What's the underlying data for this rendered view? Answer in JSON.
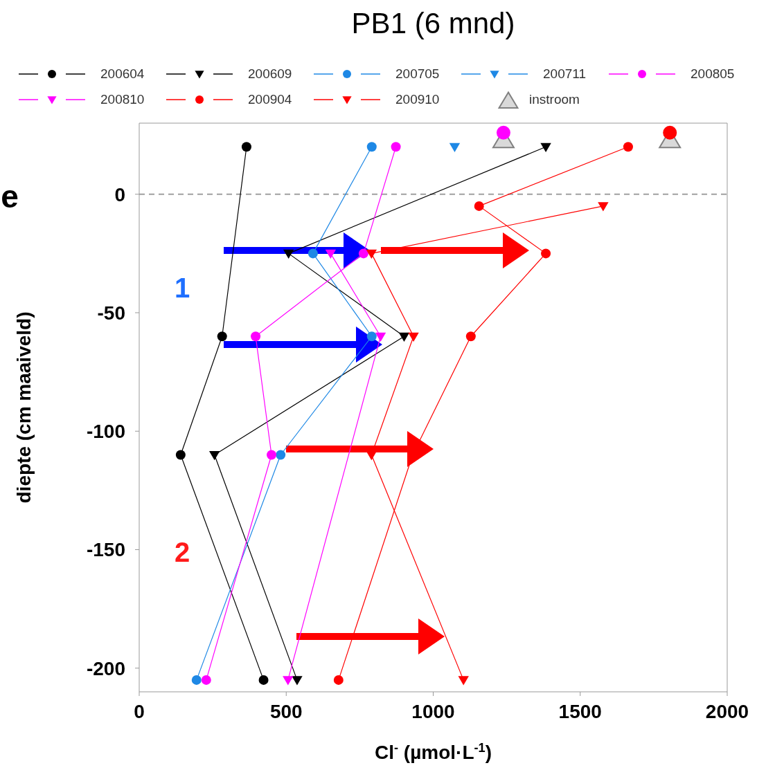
{
  "chart_data": {
    "type": "line",
    "title": "PB1 (6 mnd)",
    "xlabel": "Cl$^{-}$ (µmol·L$^{-1}$)",
    "ylabel": "diepte (cm maaiveld)",
    "xlim": [
      0,
      2000
    ],
    "xticks": [
      0,
      500,
      1000,
      1500,
      2000
    ],
    "ylim": [
      -210,
      30
    ],
    "yticks": [
      0,
      -50,
      -100,
      -150,
      -200
    ],
    "legend": "top",
    "grid": false,
    "line_style": "solid",
    "ref_lines": [
      {
        "axis": "y",
        "value": 0,
        "color": "#a0a0a0",
        "line_style": "dashed"
      }
    ],
    "annotations": [
      "e",
      "1",
      "2"
    ],
    "series": [
      {
        "name": "200604",
        "color": "#000000",
        "marker": "circle",
        "x": [
          365,
          282,
          141,
          423
        ],
        "values": [
          20,
          -60,
          -110,
          -205
        ]
      },
      {
        "name": "200609",
        "color": "#000000",
        "marker": "triangle",
        "x": [
          1383,
          508,
          901,
          256,
          537
        ],
        "values": [
          20,
          -25,
          -60,
          -110,
          -205
        ]
      },
      {
        "name": "200705",
        "color": "#1e88e5",
        "marker": "circle",
        "x": [
          791,
          591,
          791,
          481,
          195
        ],
        "values": [
          20,
          -25,
          -60,
          -110,
          -205
        ]
      },
      {
        "name": "200711",
        "color": "#1e88e5",
        "marker": "triangle",
        "x": [
          1073
        ],
        "values": [
          20
        ]
      },
      {
        "name": "200805",
        "color": "#ff00ff",
        "marker": "circle",
        "x": [
          873,
          763,
          396,
          450,
          228
        ],
        "values": [
          20,
          -25,
          -60,
          -110,
          -205
        ]
      },
      {
        "name": "200810",
        "color": "#ff00ff",
        "marker": "triangle",
        "x": [
          651,
          821,
          506
        ],
        "values": [
          -25,
          -60,
          -205
        ]
      },
      {
        "name": "200904",
        "color": "#ff0000",
        "marker": "circle",
        "x": [
          1663,
          1156,
          1383,
          1128,
          930,
          678
        ],
        "values": [
          20,
          -5,
          -25,
          -60,
          -110,
          -205
        ]
      },
      {
        "name": "200910",
        "color": "#ff0000",
        "marker": "triangle",
        "x": [
          1578,
          790,
          933,
          790,
          1103
        ],
        "values": [
          -5,
          -25,
          -60,
          -110,
          -205
        ]
      },
      {
        "name": "instroom",
        "type": "scatter",
        "color": "#808080",
        "marker": "triangle",
        "x": [
          1239,
          1805
        ],
        "values": [
          23,
          23
        ]
      },
      {
        "type": "scatter",
        "color": "#ff00ff",
        "marker": "circle",
        "x": [
          1239
        ],
        "values": [
          26
        ]
      },
      {
        "type": "scatter",
        "color": "#ff0000",
        "marker": "circle",
        "x": [
          1805
        ],
        "values": [
          26
        ]
      }
    ]
  }
}
